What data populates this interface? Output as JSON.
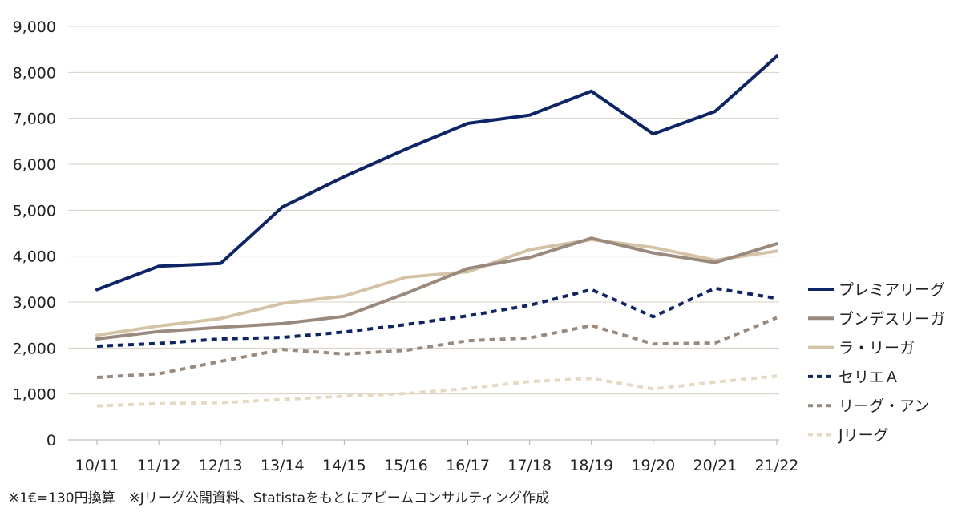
{
  "chart_data": {
    "type": "line",
    "title": "",
    "xlabel": "",
    "ylabel": "",
    "categories": [
      "10/11",
      "11/12",
      "12/13",
      "13/14",
      "14/15",
      "15/16",
      "16/17",
      "17/18",
      "18/19",
      "19/20",
      "20/21",
      "21/22"
    ],
    "ylim": [
      0,
      9000
    ],
    "yticks": [
      0,
      1000,
      2000,
      3000,
      4000,
      5000,
      6000,
      7000,
      8000,
      9000
    ],
    "ytick_labels": [
      "0",
      "1,000",
      "2,000",
      "3,000",
      "4,000",
      "5,000",
      "6,000",
      "7,000",
      "8,000",
      "9,000"
    ],
    "grid": "horizontal",
    "legend_position": "right",
    "series": [
      {
        "name": "プレミアリーグ",
        "color": "#0d2566",
        "dash": "solid",
        "values": [
          3270,
          3780,
          3840,
          5070,
          5730,
          6330,
          6890,
          7070,
          7590,
          6660,
          7150,
          8350
        ]
      },
      {
        "name": "ブンデスリーガ",
        "color": "#9a8a7e",
        "dash": "solid",
        "values": [
          2200,
          2360,
          2450,
          2530,
          2690,
          3190,
          3730,
          3970,
          4390,
          4070,
          3860,
          4270
        ]
      },
      {
        "name": "ラ・リーガ",
        "color": "#d5c3a5",
        "dash": "solid",
        "values": [
          2280,
          2480,
          2640,
          2970,
          3130,
          3540,
          3660,
          4140,
          4360,
          4190,
          3910,
          4110
        ]
      },
      {
        "name": "セリエＡ",
        "color": "#0d2566",
        "dash": "dotted",
        "values": [
          2040,
          2100,
          2200,
          2230,
          2350,
          2510,
          2700,
          2930,
          3270,
          2680,
          3300,
          3080
        ]
      },
      {
        "name": "リーグ・アン",
        "color": "#9a8a7e",
        "dash": "dotted",
        "values": [
          1360,
          1440,
          1710,
          1970,
          1870,
          1950,
          2160,
          2220,
          2490,
          2090,
          2110,
          2660
        ]
      },
      {
        "name": "Jリーグ",
        "color": "#e6d9c1",
        "dash": "dotted",
        "values": [
          740,
          790,
          810,
          880,
          950,
          1010,
          1120,
          1270,
          1340,
          1110,
          1260,
          1390
        ]
      }
    ]
  },
  "footnote": "※1€=130円換算　※Jリーグ公開資料、Statistaをもとにアビームコンサルティング作成"
}
